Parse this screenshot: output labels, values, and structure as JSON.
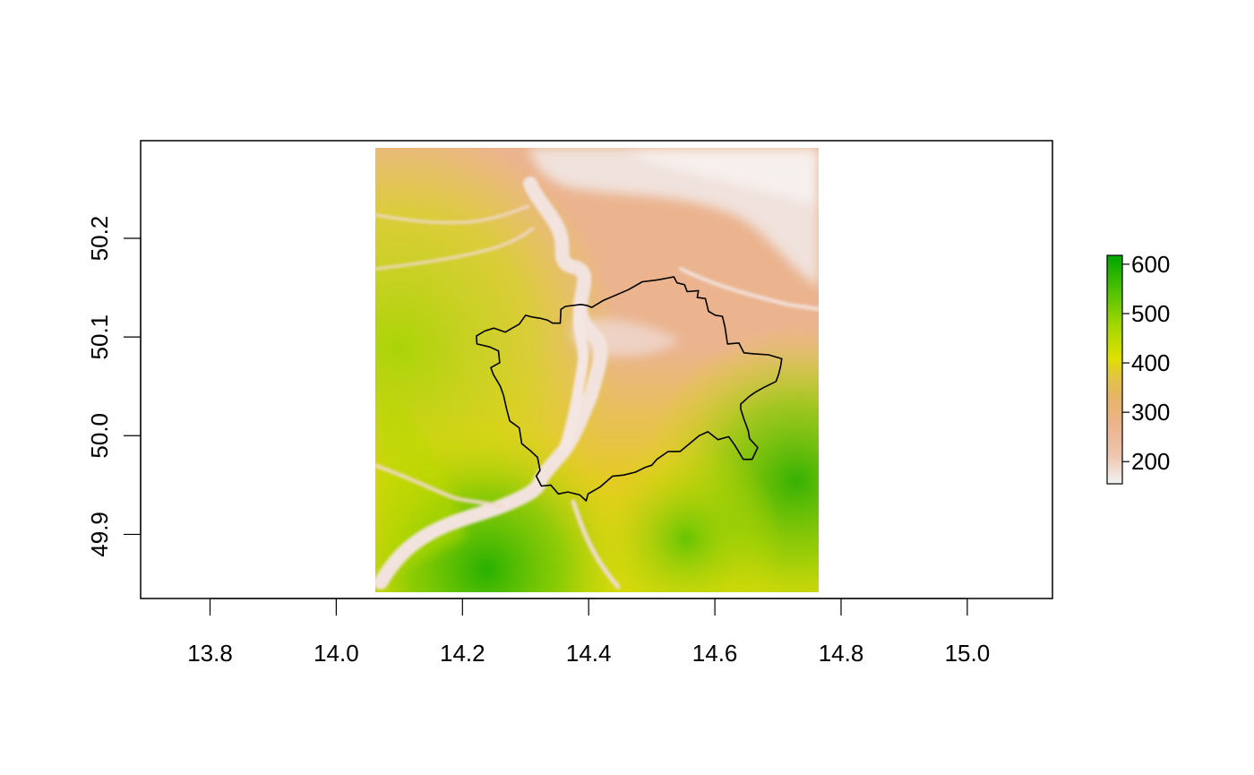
{
  "chart_data": {
    "type": "heatmap",
    "title": "",
    "xlabel": "",
    "ylabel": "",
    "xlim": [
      13.69,
      15.135
    ],
    "ylim": [
      49.835,
      50.299
    ],
    "x_ticks": [
      "13.8",
      "14.0",
      "14.2",
      "14.4",
      "14.6",
      "14.8",
      "15.0"
    ],
    "y_ticks": [
      "49.9",
      "50.0",
      "50.1",
      "50.2"
    ],
    "raster_extent": {
      "xmin": 14.065,
      "xmax": 14.767,
      "ymin": 49.842,
      "ymax": 50.292
    },
    "colorbar": {
      "min": 155,
      "max": 618,
      "ticks": [
        "200",
        "300",
        "400",
        "500",
        "600"
      ],
      "palette": [
        "#f2f2f2",
        "#eec6b0",
        "#ebb48f",
        "#e6b469",
        "#e1c542",
        "#dfe000",
        "#9fd600",
        "#4cc100",
        "#00a600"
      ]
    },
    "colors": {
      "frame": "#000000",
      "outline": "#000000"
    },
    "outline_lon_lat": [
      [
        14.323,
        50.119
      ],
      [
        14.335,
        50.117
      ],
      [
        14.343,
        50.114
      ],
      [
        14.355,
        50.114
      ],
      [
        14.356,
        50.128
      ],
      [
        14.363,
        50.131
      ],
      [
        14.388,
        50.133
      ],
      [
        14.397,
        50.132
      ],
      [
        14.405,
        50.13
      ],
      [
        14.423,
        50.137
      ],
      [
        14.445,
        50.143
      ],
      [
        14.463,
        50.148
      ],
      [
        14.485,
        50.156
      ],
      [
        14.51,
        50.158
      ],
      [
        14.535,
        50.161
      ],
      [
        14.54,
        50.155
      ],
      [
        14.552,
        50.153
      ],
      [
        14.556,
        50.146
      ],
      [
        14.574,
        50.147
      ],
      [
        14.572,
        50.14
      ],
      [
        14.585,
        50.139
      ],
      [
        14.59,
        50.126
      ],
      [
        14.601,
        50.122
      ],
      [
        14.612,
        50.121
      ],
      [
        14.616,
        50.11
      ],
      [
        14.62,
        50.093
      ],
      [
        14.638,
        50.094
      ],
      [
        14.646,
        50.084
      ],
      [
        14.662,
        50.083
      ],
      [
        14.685,
        50.082
      ],
      [
        14.706,
        50.078
      ],
      [
        14.704,
        50.07
      ],
      [
        14.701,
        50.062
      ],
      [
        14.697,
        50.055
      ],
      [
        14.678,
        50.049
      ],
      [
        14.664,
        50.044
      ],
      [
        14.655,
        50.04
      ],
      [
        14.641,
        50.032
      ],
      [
        14.641,
        50.027
      ],
      [
        14.646,
        50.017
      ],
      [
        14.653,
        50.005
      ],
      [
        14.655,
        49.997
      ],
      [
        14.668,
        49.988
      ],
      [
        14.659,
        49.976
      ],
      [
        14.645,
        49.976
      ],
      [
        14.632,
        49.99
      ],
      [
        14.622,
        49.999
      ],
      [
        14.605,
        49.996
      ],
      [
        14.589,
        50.004
      ],
      [
        14.575,
        50.0
      ],
      [
        14.56,
        49.992
      ],
      [
        14.545,
        49.984
      ],
      [
        14.526,
        49.984
      ],
      [
        14.508,
        49.976
      ],
      [
        14.5,
        49.97
      ],
      [
        14.49,
        49.968
      ],
      [
        14.474,
        49.963
      ],
      [
        14.455,
        49.96
      ],
      [
        14.438,
        49.959
      ],
      [
        14.418,
        49.948
      ],
      [
        14.399,
        49.941
      ],
      [
        14.396,
        49.934
      ],
      [
        14.386,
        49.94
      ],
      [
        14.367,
        49.943
      ],
      [
        14.352,
        49.941
      ],
      [
        14.34,
        49.95
      ],
      [
        14.325,
        49.949
      ],
      [
        14.317,
        49.959
      ],
      [
        14.323,
        49.965
      ],
      [
        14.319,
        49.978
      ],
      [
        14.309,
        49.984
      ],
      [
        14.294,
        49.992
      ],
      [
        14.29,
        50.008
      ],
      [
        14.275,
        50.015
      ],
      [
        14.27,
        50.027
      ],
      [
        14.265,
        50.041
      ],
      [
        14.26,
        50.05
      ],
      [
        14.249,
        50.062
      ],
      [
        14.245,
        50.069
      ],
      [
        14.259,
        50.074
      ],
      [
        14.257,
        50.086
      ],
      [
        14.243,
        50.09
      ],
      [
        14.223,
        50.093
      ],
      [
        14.222,
        50.101
      ],
      [
        14.235,
        50.106
      ],
      [
        14.25,
        50.109
      ],
      [
        14.268,
        50.105
      ],
      [
        14.279,
        50.109
      ],
      [
        14.29,
        50.113
      ],
      [
        14.3,
        50.122
      ],
      [
        14.312,
        50.12
      ]
    ]
  }
}
